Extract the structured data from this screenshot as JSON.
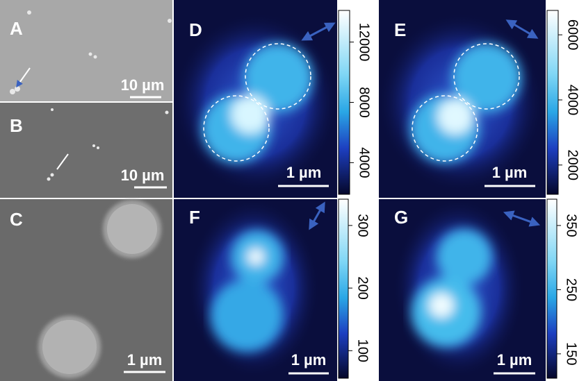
{
  "panels": [
    {
      "label": "A",
      "scale_bar": "10 µm"
    },
    {
      "label": "B",
      "scale_bar": "10 µm"
    },
    {
      "label": "C",
      "scale_bar": "1 µm"
    },
    {
      "label": "D",
      "scale_bar": "1 µm",
      "colorbar": {
        "lim": [
          1900,
          14100
        ],
        "ticks": [
          4000,
          8000,
          12000
        ]
      }
    },
    {
      "label": "E",
      "scale_bar": "1 µm",
      "colorbar": {
        "lim": [
          1100,
          6750
        ],
        "ticks": [
          2000,
          4000,
          6000
        ]
      }
    },
    {
      "label": "F",
      "scale_bar": "1 µm",
      "colorbar": {
        "lim": [
          56,
          342
        ],
        "ticks": [
          100,
          200,
          300
        ]
      }
    },
    {
      "label": "G",
      "scale_bar": "1 µm",
      "colorbar": {
        "lim": [
          112,
          391
        ],
        "ticks": [
          150,
          250,
          350
        ]
      }
    }
  ]
}
